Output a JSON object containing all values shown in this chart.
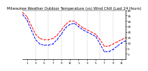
{
  "title": "Milwaukee Weather Outdoor Temperature (vs) Wind Chill (Last 24 Hours)",
  "temp_x": [
    0,
    1,
    2,
    3,
    4,
    5,
    6,
    7,
    8,
    9,
    10,
    11,
    12,
    13,
    14,
    15,
    16,
    17,
    18,
    19,
    20,
    21,
    22,
    23,
    24
  ],
  "temp_y": [
    38,
    34,
    26,
    18,
    14,
    13,
    13,
    14,
    17,
    22,
    27,
    30,
    30,
    27,
    24,
    22,
    20,
    18,
    13,
    7,
    7,
    9,
    11,
    13,
    15
  ],
  "chill_x": [
    0,
    1,
    2,
    3,
    4,
    5,
    6,
    7,
    8,
    9,
    10,
    11,
    12,
    13,
    14,
    15,
    16,
    17,
    18,
    19,
    20,
    21,
    22,
    23,
    24
  ],
  "chill_y": [
    36,
    31,
    22,
    13,
    9,
    8,
    8,
    9,
    13,
    18,
    24,
    27,
    28,
    25,
    22,
    20,
    18,
    16,
    9,
    2,
    2,
    4,
    7,
    10,
    12
  ],
  "temp_color": "#ff0000",
  "chill_color": "#0000ff",
  "bg_color": "#ffffff",
  "grid_color": "#aaaaaa",
  "grid_x_positions": [
    3,
    6,
    9,
    12,
    15,
    18,
    21,
    24
  ],
  "ylim": [
    -5,
    40
  ],
  "xlim": [
    0,
    24
  ],
  "ytick_values": [
    0,
    5,
    10,
    15,
    20,
    25,
    30,
    35,
    40
  ],
  "ytick_labels": [
    "0",
    "5",
    "10",
    "15",
    "20",
    "25",
    "30",
    "35",
    "40"
  ],
  "xtick_positions": [
    1,
    3,
    5,
    7,
    9,
    11,
    13,
    15,
    17,
    19,
    21,
    23
  ],
  "xtick_labels": [
    "1",
    "3",
    "5",
    "7",
    "9",
    "11",
    "1",
    "3",
    "5",
    "7",
    "9",
    "11"
  ],
  "title_fontsize": 3.8,
  "tick_fontsize": 3.0,
  "linewidth": 0.7,
  "markersize": 1.5
}
